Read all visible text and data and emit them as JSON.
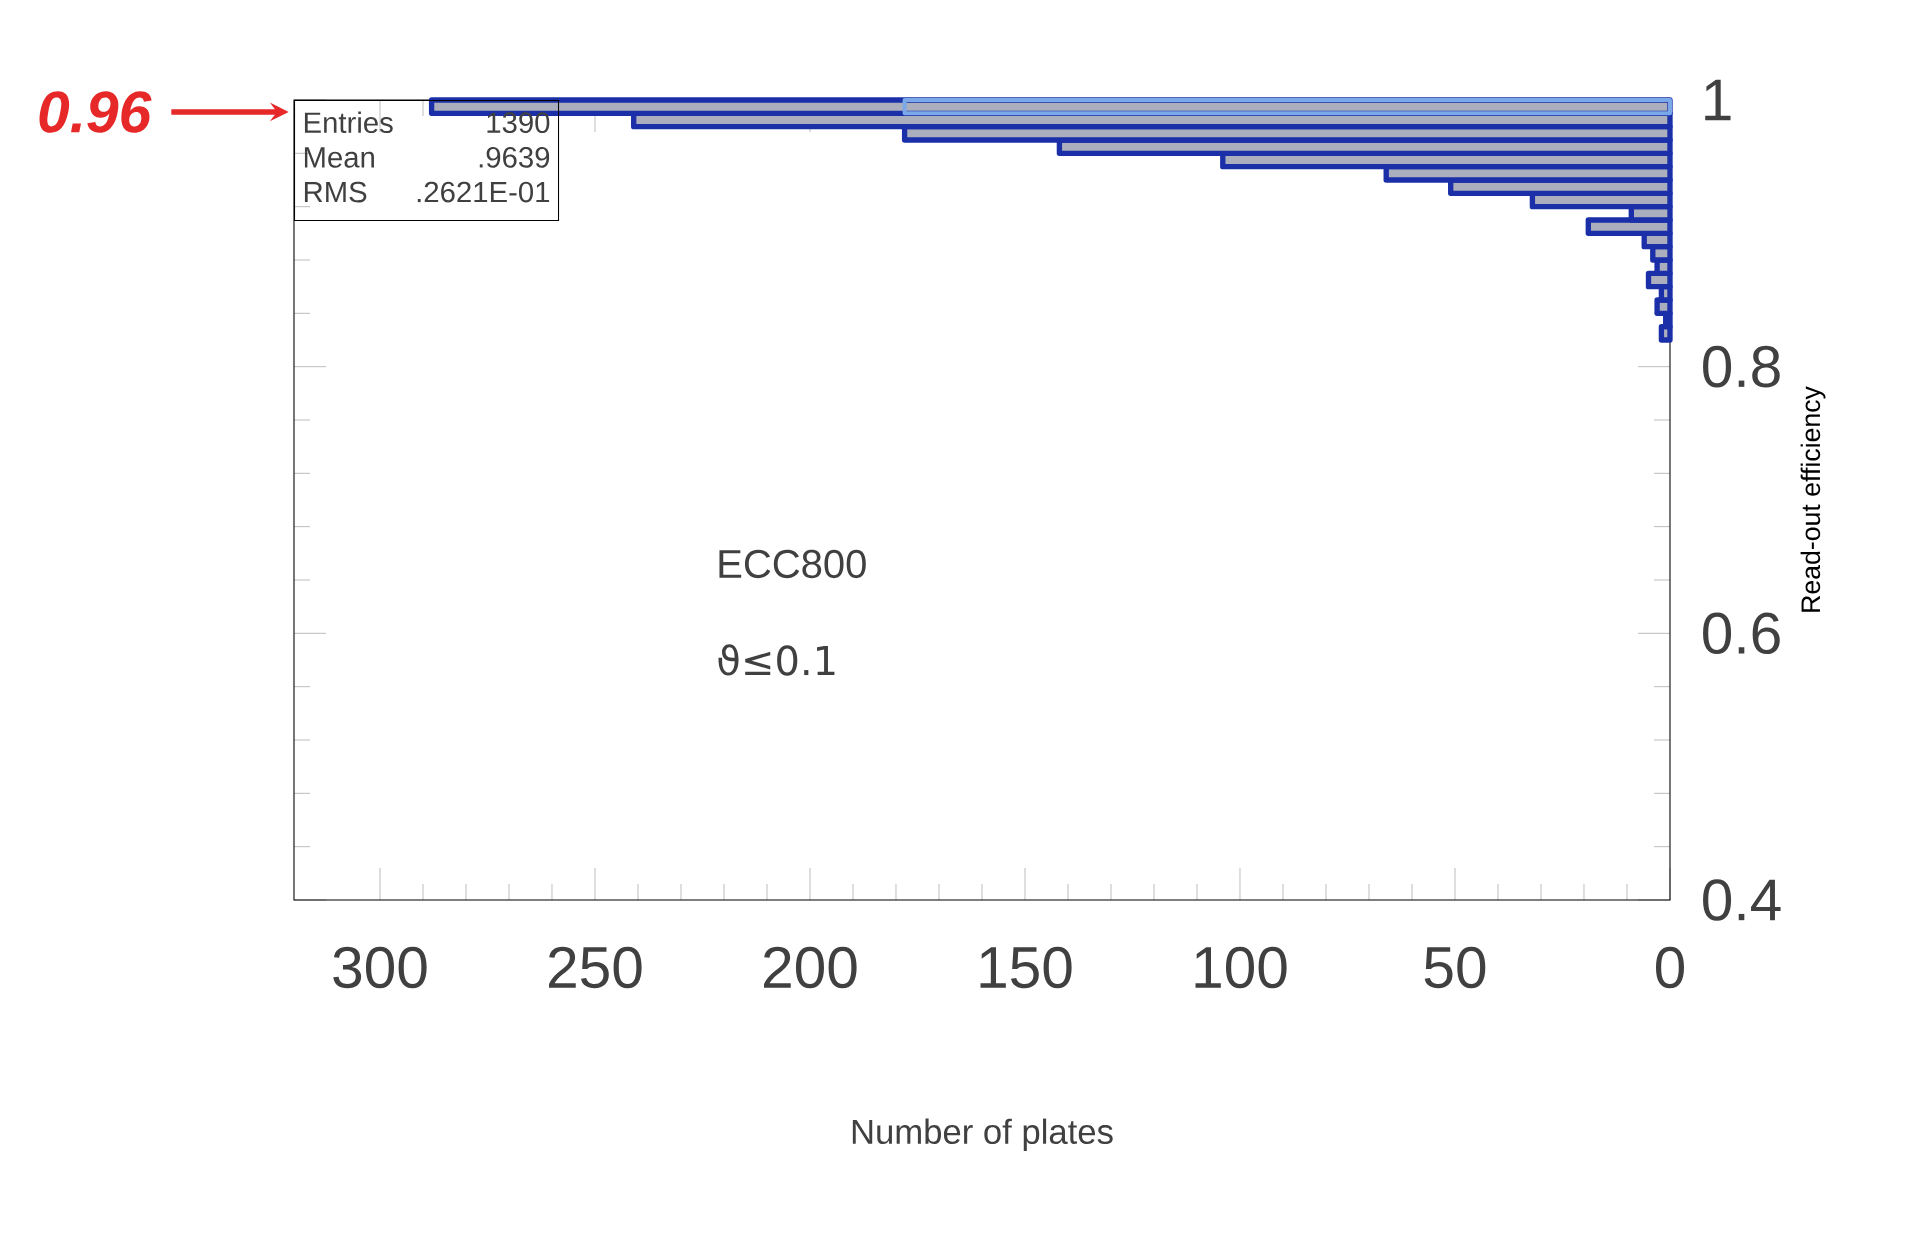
{
  "chart_data": {
    "type": "histogram",
    "orientation": "horizontal",
    "xlabel": "Number of plates",
    "ylabel": "Read-out efficiency",
    "bins": [
      0.82,
      0.83,
      0.84,
      0.85,
      0.86,
      0.87,
      0.88,
      0.89,
      0.9,
      0.91,
      0.92,
      0.93,
      0.94,
      0.95,
      0.96,
      0.97,
      0.98,
      0.99,
      1.0
    ],
    "series": [
      {
        "color": "#1a2fa8",
        "values": [
          2,
          1,
          3,
          2,
          5,
          3,
          4,
          6,
          19,
          9,
          32,
          51,
          66,
          104,
          142,
          178,
          241,
          288
        ]
      },
      {
        "color": "#7aa8e8",
        "values": [
          null,
          null,
          null,
          null,
          null,
          null,
          null,
          null,
          null,
          null,
          null,
          null,
          null,
          null,
          null,
          null,
          null,
          178
        ]
      }
    ],
    "xlim": [
      320,
      0
    ],
    "xticks": [
      0,
      50,
      100,
      150,
      200,
      250,
      300
    ],
    "ylim": [
      0.4,
      1
    ],
    "yticks": [
      0.4,
      0.6,
      0.8,
      1
    ],
    "grid": false,
    "annotations": [
      "Entries",
      "1390",
      "Mean",
      ".9639",
      "RMS",
      ".2621E-01",
      "ECC800",
      "ϑ≤0.1",
      "0.96"
    ]
  }
}
